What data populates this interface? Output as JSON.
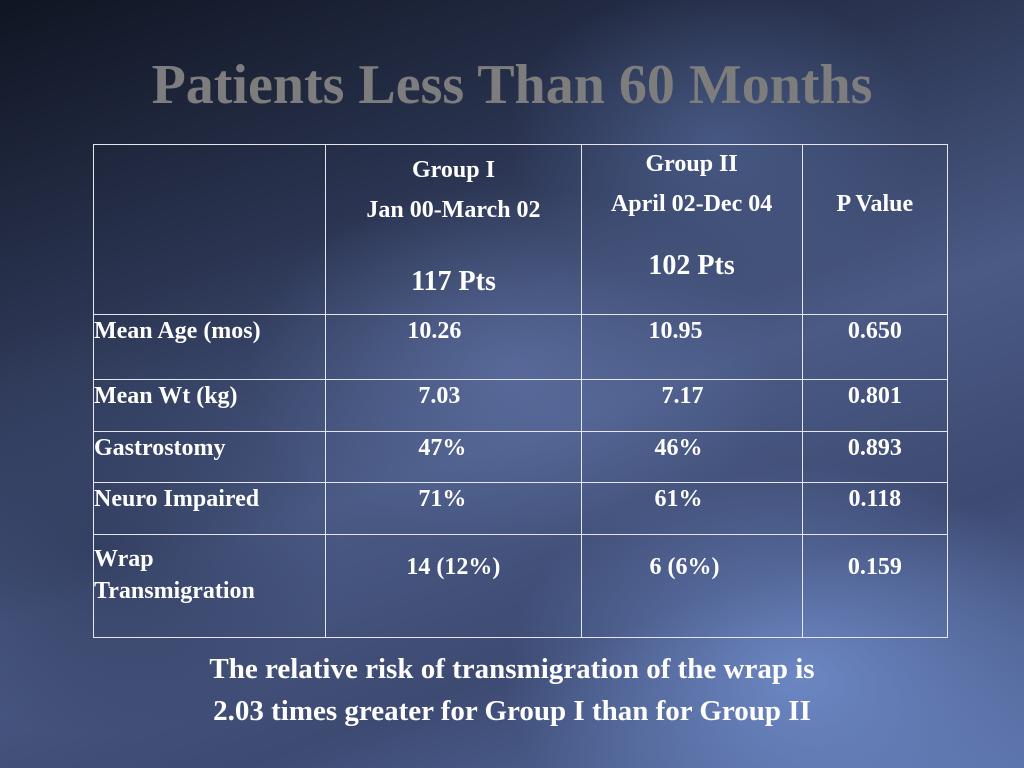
{
  "slide": {
    "title": "Patients Less Than 60 Months"
  },
  "table": {
    "header": {
      "group1": {
        "name": "Group I",
        "dates": "Jan 00-March 02",
        "pts": "117 Pts"
      },
      "group2": {
        "name": "Group II",
        "dates": "April 02-Dec 04",
        "pts": "102 Pts"
      },
      "pvalue": "P Value"
    },
    "rows": [
      {
        "label": "Mean Age (mos)",
        "g1": "10.26",
        "g2": "10.95",
        "p": "0.650"
      },
      {
        "label": "Mean Wt (kg)",
        "g1": "7.03",
        "g2": "7.17",
        "p": "0.801"
      },
      {
        "label": "Gastrostomy",
        "g1": "47%",
        "g2": "46%",
        "p": "0.893"
      },
      {
        "label": "Neuro Impaired",
        "g1": "71%",
        "g2": "61%",
        "p": "0.118"
      },
      {
        "label_line1": "Wrap",
        "label_line2": "Transmigration",
        "g1": "14 (12%)",
        "g2": "6 (6%)",
        "p": "0.159"
      }
    ]
  },
  "footer": {
    "line1": "The relative risk of transmigration of the wrap is",
    "line2": "2.03 times greater for Group I than for Group II"
  }
}
